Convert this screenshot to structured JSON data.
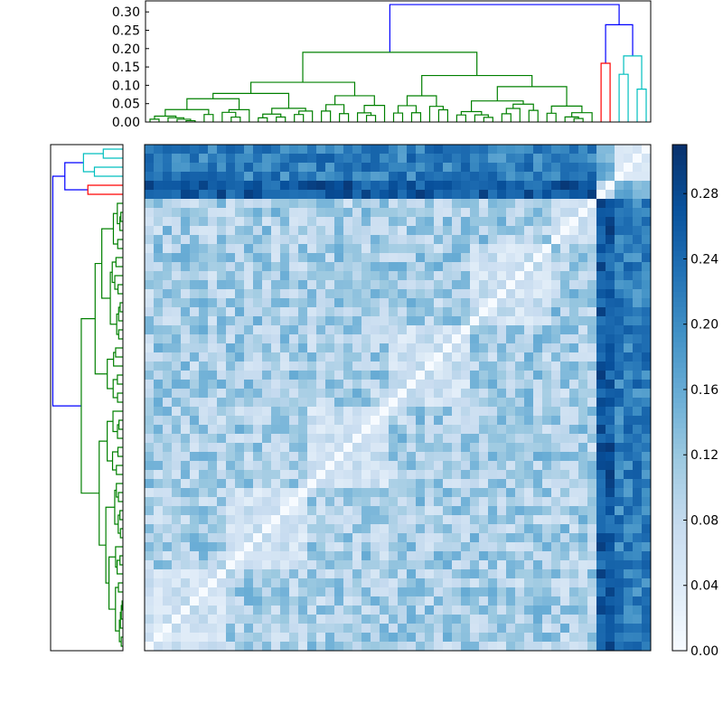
{
  "chart_data": [
    {
      "type": "dendrogram",
      "orientation": "top",
      "yticks": [
        0.0,
        0.05,
        0.1,
        0.15,
        0.2,
        0.25,
        0.3
      ],
      "tick_labels": [
        "0.00",
        "0.05",
        "0.10",
        "0.15",
        "0.20",
        "0.25",
        "0.30"
      ],
      "ylim": [
        0.0,
        0.33
      ],
      "leaf_count": 56,
      "link_colors": {
        "root": "#0000ff",
        "green": "#008000",
        "red": "#ff0000",
        "cyan": "#00bfbf"
      },
      "cluster_sizes": {
        "green": 50,
        "red": 2,
        "cyan": 4
      },
      "top_merge_heights": {
        "root": 0.32,
        "green_root": 0.19,
        "blue_inner": 0.265,
        "red": 0.16,
        "cyan": 0.18
      }
    },
    {
      "type": "dendrogram",
      "orientation": "left",
      "leaf_count": 56,
      "link_colors": {
        "root": "#0000ff",
        "green": "#008000",
        "red": "#ff0000",
        "cyan": "#00bfbf"
      },
      "mirrors": "top dendrogram",
      "tick_labels": []
    },
    {
      "type": "heatmap",
      "rows": 56,
      "cols": 56,
      "colormap": "Blues",
      "zlim": [
        0.0,
        0.31
      ],
      "diagonal_value": 0.0,
      "block_values": {
        "green_green": [
          0.05,
          0.16
        ],
        "red_green": [
          0.22,
          0.3
        ],
        "cyan_green": [
          0.17,
          0.26
        ],
        "cyan_cyan": [
          0.04,
          0.08
        ],
        "red_red": [
          0.05,
          0.1
        ]
      }
    },
    {
      "type": "colorbar",
      "colormap": "Blues",
      "range": [
        0.0,
        0.31
      ],
      "ticks": [
        0.0,
        0.04,
        0.08,
        0.12,
        0.16,
        0.2,
        0.24,
        0.28
      ],
      "tick_labels": [
        "0.00",
        "0.04",
        "0.08",
        "0.12",
        "0.16",
        "0.20",
        "0.24",
        "0.28"
      ]
    }
  ]
}
